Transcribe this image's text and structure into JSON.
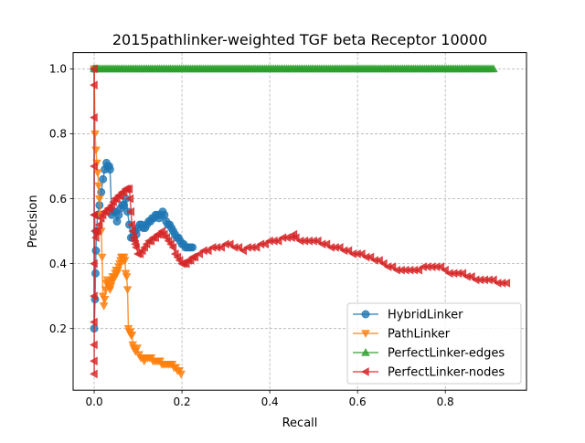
{
  "chart_data": {
    "type": "line",
    "title": "2015pathlinker-weighted TGF beta Receptor 10000",
    "xlabel": "Recall",
    "ylabel": "Precision",
    "xlim": [
      -0.048,
      0.985
    ],
    "ylim": [
      0.01,
      1.05
    ],
    "xticks": [
      0.0,
      0.2,
      0.4,
      0.6,
      0.8
    ],
    "yticks": [
      0.2,
      0.4,
      0.6,
      0.8,
      1.0
    ],
    "xtick_labels": [
      "0.0",
      "0.2",
      "0.4",
      "0.6",
      "0.8"
    ],
    "ytick_labels": [
      "0.2",
      "0.4",
      "0.6",
      "0.8",
      "1.0"
    ],
    "grid": true,
    "legend_position": "lower right",
    "series": [
      {
        "name": "HybridLinker",
        "color": "#1f77b4",
        "marker": "circle",
        "x": [
          0.0,
          0.0,
          0.002,
          0.003,
          0.004,
          0.005,
          0.008,
          0.012,
          0.016,
          0.02,
          0.024,
          0.028,
          0.03,
          0.034,
          0.036,
          0.04,
          0.044,
          0.048,
          0.052,
          0.056,
          0.06,
          0.064,
          0.068,
          0.072,
          0.076,
          0.08,
          0.084,
          0.088,
          0.092,
          0.096,
          0.1,
          0.104,
          0.108,
          0.112,
          0.116,
          0.12,
          0.124,
          0.128,
          0.132,
          0.136,
          0.14,
          0.144,
          0.148,
          0.152,
          0.156,
          0.16,
          0.164,
          0.168,
          0.172,
          0.176,
          0.18,
          0.184,
          0.188,
          0.192,
          0.196,
          0.2,
          0.204,
          0.208,
          0.212,
          0.216,
          0.22,
          0.224
        ],
        "y": [
          1.0,
          0.2,
          0.29,
          0.37,
          0.44,
          0.5,
          0.55,
          0.58,
          0.62,
          0.66,
          0.69,
          0.71,
          0.7,
          0.7,
          0.69,
          0.55,
          0.56,
          0.56,
          0.53,
          0.55,
          0.57,
          0.58,
          0.58,
          0.6,
          0.56,
          0.52,
          0.48,
          0.48,
          0.5,
          0.49,
          0.51,
          0.52,
          0.52,
          0.51,
          0.51,
          0.52,
          0.53,
          0.53,
          0.54,
          0.54,
          0.55,
          0.55,
          0.54,
          0.55,
          0.56,
          0.55,
          0.53,
          0.52,
          0.52,
          0.51,
          0.5,
          0.49,
          0.48,
          0.48,
          0.47,
          0.46,
          0.46,
          0.45,
          0.45,
          0.45,
          0.45,
          0.45
        ]
      },
      {
        "name": "PathLinker",
        "color": "#ff7f0e",
        "marker": "triangle-down",
        "x": [
          0.0,
          0.002,
          0.004,
          0.006,
          0.008,
          0.01,
          0.012,
          0.014,
          0.016,
          0.018,
          0.02,
          0.022,
          0.024,
          0.026,
          0.028,
          0.03,
          0.032,
          0.034,
          0.036,
          0.038,
          0.04,
          0.042,
          0.044,
          0.046,
          0.048,
          0.05,
          0.052,
          0.054,
          0.056,
          0.058,
          0.06,
          0.062,
          0.064,
          0.066,
          0.068,
          0.07,
          0.072,
          0.074,
          0.076,
          0.078,
          0.08,
          0.082,
          0.084,
          0.086,
          0.088,
          0.09,
          0.094,
          0.098,
          0.102,
          0.106,
          0.11,
          0.114,
          0.118,
          0.122,
          0.126,
          0.13,
          0.134,
          0.138,
          0.142,
          0.146,
          0.15,
          0.154,
          0.158,
          0.162,
          0.166,
          0.17,
          0.174,
          0.178,
          0.182,
          0.186,
          0.19,
          0.194,
          0.198
        ],
        "y": [
          1.0,
          0.8,
          0.75,
          0.71,
          0.68,
          0.64,
          0.6,
          0.55,
          0.5,
          0.42,
          0.3,
          0.27,
          0.29,
          0.32,
          0.34,
          0.35,
          0.34,
          0.33,
          0.32,
          0.33,
          0.35,
          0.36,
          0.35,
          0.36,
          0.37,
          0.38,
          0.37,
          0.38,
          0.39,
          0.4,
          0.41,
          0.42,
          0.42,
          0.41,
          0.42,
          0.41,
          0.37,
          0.36,
          0.32,
          0.2,
          0.19,
          0.19,
          0.18,
          0.18,
          0.15,
          0.14,
          0.13,
          0.14,
          0.12,
          0.11,
          0.11,
          0.1,
          0.11,
          0.11,
          0.11,
          0.11,
          0.1,
          0.1,
          0.1,
          0.1,
          0.1,
          0.09,
          0.09,
          0.09,
          0.09,
          0.09,
          0.09,
          0.09,
          0.08,
          0.08,
          0.07,
          0.07,
          0.06
        ]
      },
      {
        "name": "PerfectLinker-edges",
        "color": "#2ca02c",
        "marker": "triangle-up",
        "x_start": 0.0,
        "x_end": 0.91,
        "y_value": 1.0
      },
      {
        "name": "PerfectLinker-nodes",
        "color": "#d62728",
        "marker": "triangle-left",
        "x": [
          0.0,
          0.0,
          0.0,
          0.0,
          0.0,
          0.0,
          0.0,
          0.0,
          0.0,
          0.0,
          0.0,
          0.001,
          0.002,
          0.004,
          0.008,
          0.012,
          0.016,
          0.02,
          0.024,
          0.028,
          0.032,
          0.036,
          0.04,
          0.044,
          0.048,
          0.052,
          0.056,
          0.06,
          0.064,
          0.068,
          0.072,
          0.076,
          0.08,
          0.082,
          0.084,
          0.086,
          0.088,
          0.09,
          0.092,
          0.094,
          0.096,
          0.1,
          0.105,
          0.11,
          0.115,
          0.12,
          0.125,
          0.13,
          0.135,
          0.14,
          0.145,
          0.15,
          0.155,
          0.16,
          0.165,
          0.17,
          0.175,
          0.18,
          0.185,
          0.19,
          0.195,
          0.2,
          0.205,
          0.21,
          0.215,
          0.22,
          0.225,
          0.23,
          0.24,
          0.25,
          0.26,
          0.27,
          0.28,
          0.29,
          0.3,
          0.31,
          0.32,
          0.33,
          0.34,
          0.35,
          0.36,
          0.37,
          0.38,
          0.39,
          0.4,
          0.41,
          0.42,
          0.43,
          0.44,
          0.45,
          0.455,
          0.46,
          0.47,
          0.48,
          0.49,
          0.5,
          0.51,
          0.52,
          0.53,
          0.54,
          0.55,
          0.56,
          0.57,
          0.58,
          0.59,
          0.6,
          0.61,
          0.62,
          0.63,
          0.64,
          0.65,
          0.66,
          0.67,
          0.68,
          0.69,
          0.7,
          0.71,
          0.72,
          0.73,
          0.74,
          0.75,
          0.76,
          0.77,
          0.78,
          0.79,
          0.8,
          0.81,
          0.82,
          0.83,
          0.84,
          0.85,
          0.86,
          0.87,
          0.88,
          0.89,
          0.9,
          0.91,
          0.92,
          0.93,
          0.94
        ],
        "y": [
          1.0,
          0.95,
          0.85,
          0.7,
          0.55,
          0.4,
          0.3,
          0.22,
          0.15,
          0.1,
          0.06,
          0.55,
          0.5,
          0.48,
          0.5,
          0.52,
          0.54,
          0.55,
          0.56,
          0.56,
          0.57,
          0.57,
          0.58,
          0.59,
          0.6,
          0.6,
          0.61,
          0.61,
          0.62,
          0.62,
          0.63,
          0.63,
          0.63,
          0.6,
          0.56,
          0.52,
          0.5,
          0.48,
          0.47,
          0.46,
          0.45,
          0.43,
          0.43,
          0.44,
          0.45,
          0.46,
          0.47,
          0.47,
          0.48,
          0.48,
          0.49,
          0.49,
          0.5,
          0.49,
          0.48,
          0.47,
          0.46,
          0.45,
          0.43,
          0.42,
          0.41,
          0.4,
          0.4,
          0.4,
          0.41,
          0.41,
          0.42,
          0.42,
          0.43,
          0.44,
          0.44,
          0.45,
          0.45,
          0.45,
          0.46,
          0.46,
          0.45,
          0.45,
          0.44,
          0.45,
          0.45,
          0.45,
          0.46,
          0.46,
          0.47,
          0.47,
          0.47,
          0.48,
          0.48,
          0.48,
          0.49,
          0.48,
          0.47,
          0.47,
          0.47,
          0.47,
          0.47,
          0.46,
          0.46,
          0.45,
          0.45,
          0.45,
          0.44,
          0.44,
          0.43,
          0.43,
          0.43,
          0.42,
          0.42,
          0.41,
          0.41,
          0.4,
          0.39,
          0.39,
          0.38,
          0.38,
          0.38,
          0.38,
          0.38,
          0.38,
          0.39,
          0.39,
          0.39,
          0.39,
          0.39,
          0.38,
          0.37,
          0.37,
          0.37,
          0.37,
          0.36,
          0.36,
          0.35,
          0.35,
          0.35,
          0.35,
          0.35,
          0.34,
          0.34,
          0.34
        ]
      }
    ]
  }
}
